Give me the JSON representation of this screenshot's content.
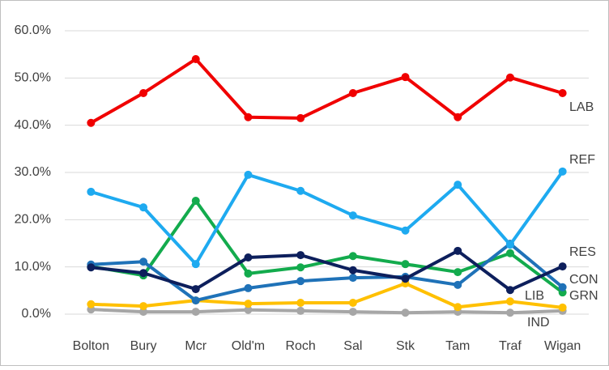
{
  "chart_data": {
    "type": "line",
    "categories": [
      "Bolton",
      "Bury",
      "Mcr",
      "Old'm",
      "Roch",
      "Sal",
      "Stk",
      "Tam",
      "Traf",
      "Wigan"
    ],
    "ylim": [
      0,
      60
    ],
    "yticks": [
      {
        "value": 0,
        "label": "0.0%"
      },
      {
        "value": 10,
        "label": "10.0%"
      },
      {
        "value": 20,
        "label": "20.0%"
      },
      {
        "value": 30,
        "label": "30.0%"
      },
      {
        "value": 40,
        "label": "40.0%"
      },
      {
        "value": 50,
        "label": "50.0%"
      },
      {
        "value": 60,
        "label": "60.0%"
      }
    ],
    "grid": true,
    "series": [
      {
        "name": "IND",
        "color": "#a6a6a6",
        "values": [
          1.0,
          0.5,
          0.5,
          0.9,
          0.7,
          0.5,
          0.3,
          0.5,
          0.3,
          0.7
        ]
      },
      {
        "name": "LIB",
        "color": "#ffc000",
        "values": [
          2.1,
          1.7,
          2.9,
          2.2,
          2.4,
          2.4,
          6.5,
          1.5,
          2.7,
          1.4
        ]
      },
      {
        "name": "GRN",
        "color": "#13ab4d",
        "values": [
          10.1,
          8.2,
          24.0,
          8.6,
          9.9,
          12.3,
          10.6,
          8.9,
          12.9,
          4.6
        ]
      },
      {
        "name": "CON",
        "color": "#1f72b8",
        "values": [
          10.5,
          11.1,
          2.9,
          5.5,
          7.0,
          7.7,
          7.9,
          6.2,
          14.9,
          5.7
        ]
      },
      {
        "name": "RES",
        "color": "#0d1f5c",
        "values": [
          9.9,
          8.7,
          5.3,
          12.0,
          12.5,
          9.3,
          7.5,
          13.4,
          5.1,
          10.1
        ]
      },
      {
        "name": "REF",
        "color": "#1eaaf0",
        "values": [
          25.9,
          22.6,
          10.6,
          29.5,
          26.1,
          20.9,
          17.7,
          27.4,
          14.7,
          30.2
        ]
      },
      {
        "name": "LAB",
        "color": "#f00000",
        "values": [
          40.5,
          46.8,
          54.0,
          41.7,
          41.5,
          46.8,
          50.2,
          41.7,
          50.1,
          46.8
        ]
      }
    ]
  }
}
